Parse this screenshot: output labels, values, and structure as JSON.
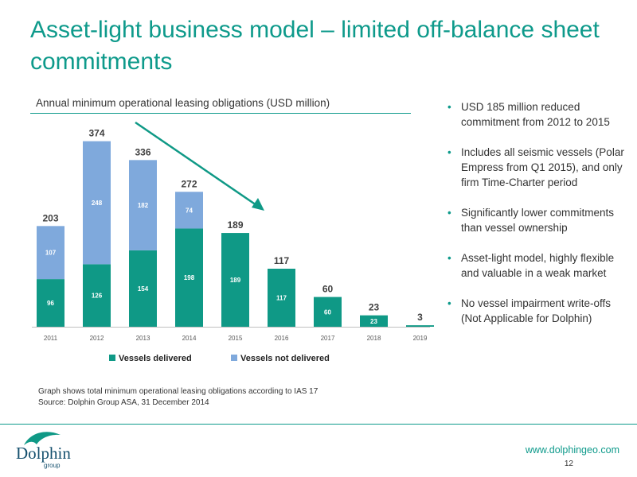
{
  "slide": {
    "title": "Asset-light business model – limited off-balance sheet commitments",
    "chart_heading": "Annual minimum operational leasing obligations (USD million)",
    "bullets": [
      "USD 185 million reduced commitment from 2012 to 2015",
      "Includes all seismic vessels (Polar Empress from Q1 2015), and only firm Time-Charter period",
      "Significantly lower commitments than vessel ownership",
      "Asset-light model, highly flexible  and valuable in a weak market",
      "No vessel  impairment write-offs (Not Applicable for Dolphin)"
    ],
    "notes": [
      "Graph shows total minimum operational leasing obligations according to IAS 17",
      "Source: Dolphin Group ASA, 31 December 2014"
    ],
    "website": "www.dolphingeo.com",
    "page_number": "12",
    "logo_text": "Dolphin",
    "logo_subtext": "group"
  },
  "colors": {
    "accent": "#0e9a8b",
    "delivered": "#0f9986",
    "not_delivered": "#7fa9dc"
  },
  "chart_data": {
    "type": "bar",
    "stacked": true,
    "categories": [
      "2011",
      "2012",
      "2013",
      "2014",
      "2015",
      "2016",
      "2017",
      "2018",
      "2019"
    ],
    "series": [
      {
        "name": "Vessels delivered",
        "values": [
          96,
          126,
          154,
          198,
          189,
          117,
          60,
          23,
          3
        ],
        "labels": [
          "96",
          "126",
          "154",
          "198",
          "189",
          "117",
          "60",
          "23",
          ""
        ]
      },
      {
        "name": "Vessels not delivered",
        "values": [
          107,
          248,
          182,
          74,
          0,
          0,
          0,
          0,
          0
        ],
        "labels": [
          "107",
          "248",
          "182",
          "74",
          "",
          "",
          "",
          "",
          ""
        ]
      }
    ],
    "totals": [
      203,
      374,
      336,
      272,
      189,
      117,
      60,
      23,
      3
    ],
    "total_labels": [
      "203",
      "374",
      "336",
      "272",
      "189",
      "117",
      "60",
      "23",
      "3"
    ],
    "ylim": [
      0,
      400
    ],
    "grid": false,
    "legend": "bottom",
    "annotation": "downward arrow from 2012 to 2015"
  }
}
